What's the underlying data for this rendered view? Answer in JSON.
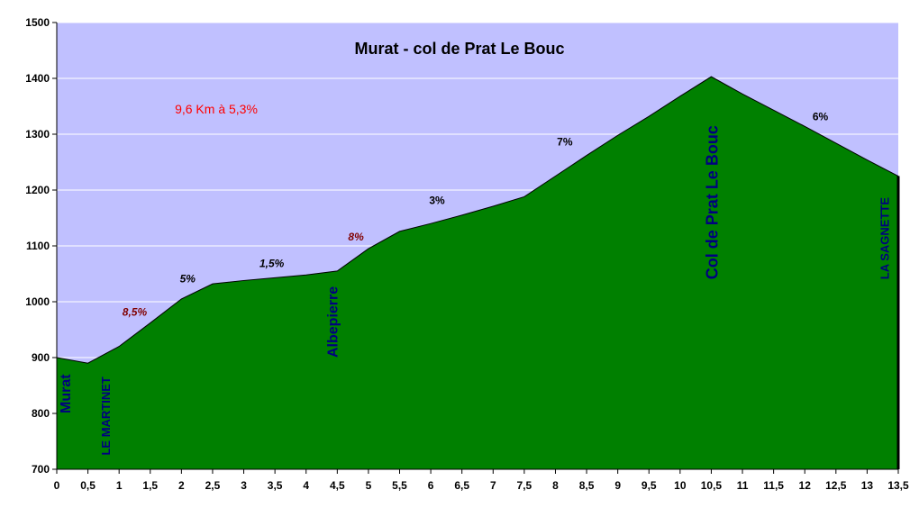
{
  "chart_data": {
    "type": "area",
    "title": "Murat - col de Prat Le Bouc",
    "subtitle": "9,6 Km à 5,3%",
    "xlabel": "",
    "ylabel": "",
    "xlim": [
      0,
      13.5
    ],
    "ylim": [
      700,
      1500
    ],
    "x_ticks": [
      "0",
      "0,5",
      "1",
      "1,5",
      "2",
      "2,5",
      "3",
      "3,5",
      "4",
      "4,5",
      "5",
      "5,5",
      "6",
      "6,5",
      "7",
      "7,5",
      "8",
      "8,5",
      "9",
      "9,5",
      "10",
      "10,5",
      "11",
      "11,5",
      "12",
      "12,5",
      "13",
      "13,5"
    ],
    "y_ticks": [
      "700",
      "800",
      "900",
      "1000",
      "1100",
      "1200",
      "1300",
      "1400",
      "1500"
    ],
    "grid": "horizontal",
    "series": [
      {
        "x": [
          0,
          0.5,
          1,
          1.5,
          2,
          2.5,
          3,
          3.5,
          4,
          4.5,
          5,
          5.5,
          6,
          6.5,
          7,
          7.5,
          8,
          8.5,
          9,
          9.5,
          10,
          10.5,
          11,
          11.5,
          12,
          12.5,
          13,
          13.5
        ],
        "y": [
          900,
          890,
          920,
          962,
          1005,
          1032,
          1038,
          1043,
          1048,
          1055,
          1095,
          1126,
          1140,
          1155,
          1171,
          1188,
          1225,
          1262,
          1298,
          1332,
          1368,
          1403,
          1372,
          1343,
          1314,
          1284,
          1254,
          1225
        ]
      }
    ],
    "grade_labels": [
      {
        "text": "8,5%",
        "x": 1.25,
        "y": 975,
        "color": "#800000",
        "italic": true
      },
      {
        "text": "5%",
        "x": 2.1,
        "y": 1035,
        "color": "#000000",
        "italic": true
      },
      {
        "text": "1,5%",
        "x": 3.45,
        "y": 1062,
        "color": "#000000",
        "italic": true
      },
      {
        "text": "8%",
        "x": 4.8,
        "y": 1110,
        "color": "#800000",
        "italic": true
      },
      {
        "text": "3%",
        "x": 6.1,
        "y": 1175,
        "color": "#000000",
        "italic": false
      },
      {
        "text": "7%",
        "x": 8.15,
        "y": 1280,
        "color": "#000000",
        "italic": false
      },
      {
        "text": "6%",
        "x": 12.25,
        "y": 1325,
        "color": "#000000",
        "italic": false
      }
    ],
    "place_labels": [
      {
        "text": "Murat",
        "x": 0.22,
        "y": 800,
        "color": "#000080",
        "size": 16,
        "bold": true
      },
      {
        "text": "LE MARTINET",
        "x": 0.85,
        "y": 725,
        "color": "#000080",
        "size": 13,
        "bold": false
      },
      {
        "text": "Albepierre",
        "x": 4.5,
        "y": 900,
        "color": "#000080",
        "size": 16,
        "bold": true
      },
      {
        "text": "Col de Prat Le Bouc",
        "x": 10.6,
        "y": 1040,
        "color": "#000080",
        "size": 18,
        "bold": true
      },
      {
        "text": "LA SAGNETTE",
        "x": 13.35,
        "y": 1040,
        "color": "#000080",
        "size": 13,
        "bold": false
      }
    ],
    "colors": {
      "plot_background": "#c0c0ff",
      "fill": "#008000",
      "line": "#000000",
      "grid": "#ffffff"
    }
  }
}
